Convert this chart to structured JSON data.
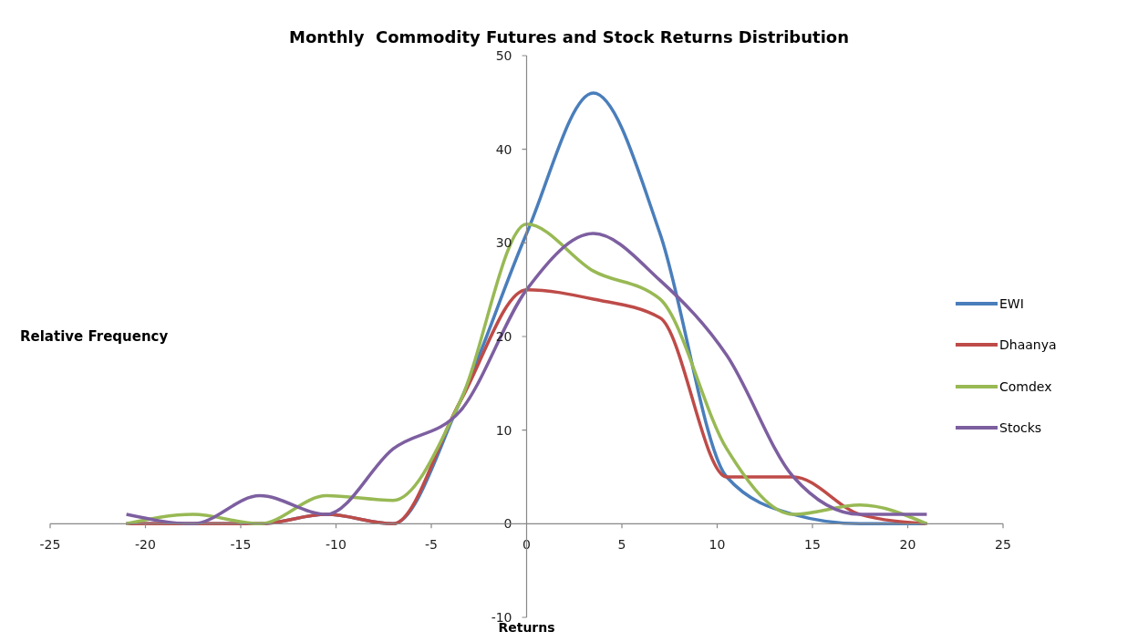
{
  "chart_data": {
    "type": "line",
    "title": "Monthly  Commodity Futures and Stock Returns Distribution",
    "xlabel": "Returns",
    "ylabel": "Relative Frequency",
    "x": [
      -21,
      -17.5,
      -14,
      -10.5,
      -7,
      -3.5,
      0,
      3.5,
      7,
      10.5,
      14,
      17.5,
      21
    ],
    "series": [
      {
        "name": "EWI",
        "color": "#4a7ebb",
        "values": [
          0,
          0,
          0,
          1,
          0,
          13,
          31,
          46,
          31,
          5,
          1,
          0,
          0
        ]
      },
      {
        "name": "Dhaanya",
        "color": "#be4b48",
        "values": [
          0,
          0,
          0,
          1,
          0,
          13,
          25,
          24,
          22,
          5,
          5,
          1,
          0
        ]
      },
      {
        "name": "Comdex",
        "color": "#98b954",
        "values": [
          0,
          1,
          0,
          3,
          2.5,
          13,
          32,
          27,
          24,
          8,
          1,
          2,
          0
        ]
      },
      {
        "name": "Stocks",
        "color": "#7d5fa0",
        "values": [
          1,
          0,
          3,
          1,
          8,
          12,
          25,
          31,
          26,
          18,
          5,
          1,
          1
        ]
      }
    ],
    "xlim": [
      -25,
      25
    ],
    "xticks": [
      -25,
      -20,
      -15,
      -10,
      -5,
      0,
      5,
      10,
      15,
      20,
      25
    ],
    "ylim": [
      -10,
      50
    ],
    "yticks": [
      -10,
      0,
      10,
      20,
      30,
      40,
      50
    ],
    "grid": false,
    "legend": "right",
    "marker": "none",
    "line_style": "solid"
  }
}
